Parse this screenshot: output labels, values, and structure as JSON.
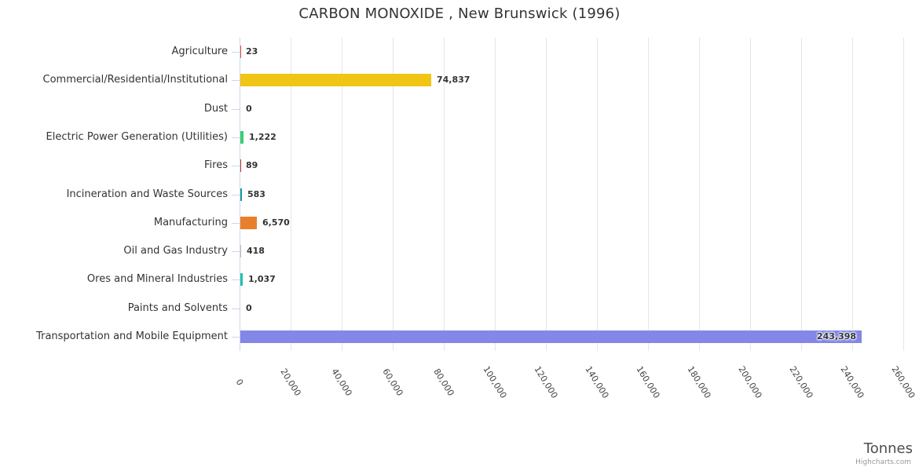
{
  "chart_data": {
    "type": "bar",
    "orientation": "horizontal",
    "title": "CARBON MONOXIDE , New Brunswick (1996)",
    "xlabel": "Tonnes",
    "ylabel": "",
    "xlim": [
      0,
      260000
    ],
    "tick_interval": 20000,
    "grid": true,
    "legend": false,
    "categories": [
      "Agriculture",
      "Commercial/Residential/Institutional",
      "Dust",
      "Electric Power Generation (Utilities)",
      "Fires",
      "Incineration and Waste Sources",
      "Manufacturing",
      "Oil and Gas Industry",
      "Ores and Mineral Industries",
      "Paints and Solvents",
      "Transportation and Mobile Equipment"
    ],
    "values": [
      23,
      74837,
      0,
      1222,
      89,
      583,
      6570,
      418,
      1037,
      0,
      243398
    ],
    "value_labels": [
      "23",
      "74,837",
      "0",
      "1,222",
      "89",
      "583",
      "6,570",
      "418",
      "1,037",
      "0",
      "243,398"
    ],
    "bar_colors": [
      "#e74c3c",
      "#f0c514",
      "#95a5a6",
      "#37d073",
      "#c0392b",
      "#1899a2",
      "#e8802a",
      "#b8bec4",
      "#21c4a8",
      "#8e44ad",
      "#8287e8"
    ],
    "inside_label_index": 10,
    "x_tick_labels": [
      "0",
      "20,000",
      "40,000",
      "60,000",
      "80,000",
      "100,000",
      "120,000",
      "140,000",
      "160,000",
      "180,000",
      "200,000",
      "220,000",
      "240,000",
      "260,000"
    ]
  },
  "credits": {
    "text": "Highcharts.com"
  },
  "colors": {
    "grid": "#e6e6e6",
    "axis_line": "#ccd6eb",
    "title_text": "#333333",
    "category_text": "#333333",
    "value_text": "#333333",
    "axis_title_text": "#4d4d4d",
    "credits_text": "#999999"
  }
}
